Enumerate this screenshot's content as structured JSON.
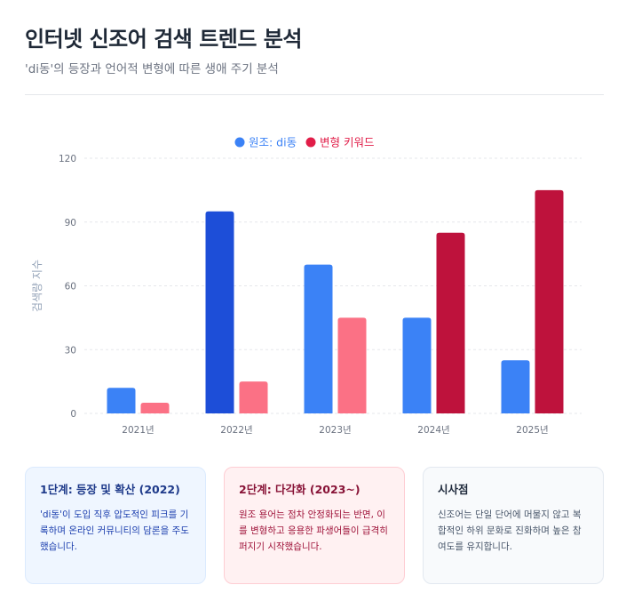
{
  "header": {
    "title": "인터넷 신조어 검색 트렌드 분석",
    "subtitle": "'di동'의 등장과 언어적 변형에 따른 생애 주기 분석"
  },
  "chart_data": {
    "type": "bar",
    "categories": [
      "2021년",
      "2022년",
      "2023년",
      "2024년",
      "2025년"
    ],
    "series": [
      {
        "name": "원조: di동",
        "values": [
          12,
          95,
          70,
          45,
          25
        ],
        "color": "#3b82f6",
        "highlight_color": "#1d4ed8",
        "highlight_index": 1
      },
      {
        "name": "변형 키워드",
        "values": [
          5,
          15,
          45,
          85,
          105
        ],
        "color": "#fb7185",
        "highlight_color": "#be123c",
        "highlight_from_index": 3
      }
    ],
    "title": "",
    "xlabel": "",
    "ylabel": "검색량 지수",
    "ylim": [
      0,
      120
    ],
    "yticks": [
      0,
      30,
      60,
      90,
      120
    ],
    "legend_position": "top-center",
    "grid": true
  },
  "cards": [
    {
      "title": "1단계: 등장 및 확산 (2022)",
      "body": "'di동'이 도입 직후 압도적인 피크를 기록하며 온라인 커뮤니티의 담론을 주도했습니다."
    },
    {
      "title": "2단계: 다각화 (2023~)",
      "body": "원조 용어는 점차 안정화되는 반면, 이를 변형하고 응용한 파생어들이 급격히 퍼지기 시작했습니다."
    },
    {
      "title": "시사점",
      "body": "신조어는 단일 단어에 머물지 않고 복합적인 하위 문화로 진화하며 높은 참여도를 유지합니다."
    }
  ],
  "colors": {
    "axis_text": "#6b7280",
    "ylabel": "#94a3b8",
    "grid": "#e5e7eb"
  }
}
